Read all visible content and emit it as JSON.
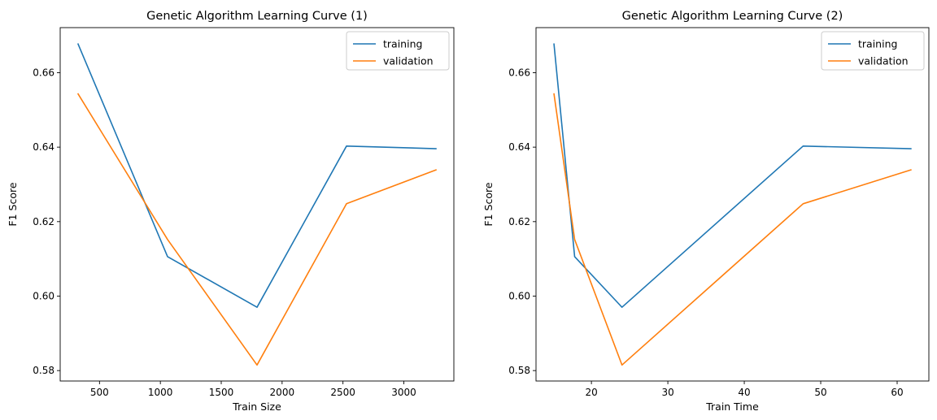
{
  "chart_data": [
    {
      "type": "line",
      "title": "Genetic Algorithm Learning Curve (1)",
      "xlabel": "Train Size",
      "ylabel": "F1 Score",
      "x": [
        324,
        1059,
        1794,
        2529,
        3264
      ],
      "xlim": [
        177,
        3411
      ],
      "ylim": [
        0.5772,
        0.6721
      ],
      "xticks": [
        500,
        1000,
        1500,
        2000,
        2500,
        3000
      ],
      "xtick_labels": [
        "500",
        "1000",
        "1500",
        "2000",
        "2500",
        "3000"
      ],
      "yticks": [
        0.58,
        0.6,
        0.62,
        0.64,
        0.66
      ],
      "ytick_labels": [
        "0.58",
        "0.60",
        "0.62",
        "0.64",
        "0.66"
      ],
      "series": [
        {
          "name": "training",
          "color": "#1f77b4",
          "values": [
            0.6677,
            0.6106,
            0.597,
            0.6403,
            0.6396
          ]
        },
        {
          "name": "validation",
          "color": "#ff7f0e",
          "values": [
            0.6543,
            0.6152,
            0.5815,
            0.6248,
            0.6339
          ]
        }
      ],
      "legend": "top-right",
      "grid": false
    },
    {
      "type": "line",
      "title": "Genetic Algorithm Learning Curve (2)",
      "xlabel": "Train Time",
      "ylabel": "F1 Score",
      "x": [
        15.1,
        17.8,
        24.0,
        47.7,
        61.8
      ],
      "xlim": [
        12.75,
        64.15
      ],
      "ylim": [
        0.5772,
        0.6721
      ],
      "xticks": [
        20,
        30,
        40,
        50,
        60
      ],
      "xtick_labels": [
        "20",
        "30",
        "40",
        "50",
        "60"
      ],
      "yticks": [
        0.58,
        0.6,
        0.62,
        0.64,
        0.66
      ],
      "ytick_labels": [
        "0.58",
        "0.60",
        "0.62",
        "0.64",
        "0.66"
      ],
      "series": [
        {
          "name": "training",
          "color": "#1f77b4",
          "values": [
            0.6677,
            0.6106,
            0.597,
            0.6403,
            0.6396
          ]
        },
        {
          "name": "validation",
          "color": "#ff7f0e",
          "values": [
            0.6543,
            0.6152,
            0.5815,
            0.6248,
            0.6339
          ]
        }
      ],
      "legend": "top-right",
      "grid": false
    }
  ]
}
